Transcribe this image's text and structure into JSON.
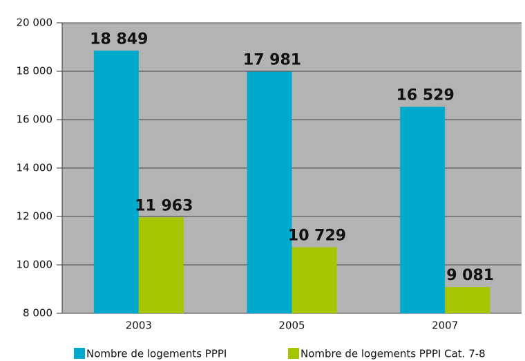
{
  "chart_data": {
    "type": "bar",
    "categories": [
      "2003",
      "2005",
      "2007"
    ],
    "series": [
      {
        "name": "Nombre de logements PPPI",
        "color": "#00aacc",
        "values": [
          18849,
          17981,
          16529
        ],
        "value_labels": [
          "18 849",
          "17 981",
          "16 529"
        ]
      },
      {
        "name": "Nombre de logements PPPI Cat. 7-8",
        "color": "#a6c400",
        "values": [
          11963,
          10729,
          9081
        ],
        "value_labels": [
          "11 963",
          "10 729",
          "9 081"
        ]
      }
    ],
    "ylim": [
      8000,
      20000
    ],
    "yticks": [
      {
        "value": 8000,
        "label": "8 000"
      },
      {
        "value": 10000,
        "label": "10 000"
      },
      {
        "value": 12000,
        "label": "12 000"
      },
      {
        "value": 14000,
        "label": "14 000"
      },
      {
        "value": 16000,
        "label": "16 000"
      },
      {
        "value": 18000,
        "label": "18 000"
      },
      {
        "value": 20000,
        "label": "20 000"
      }
    ],
    "grid": true,
    "legend": "bottom"
  }
}
